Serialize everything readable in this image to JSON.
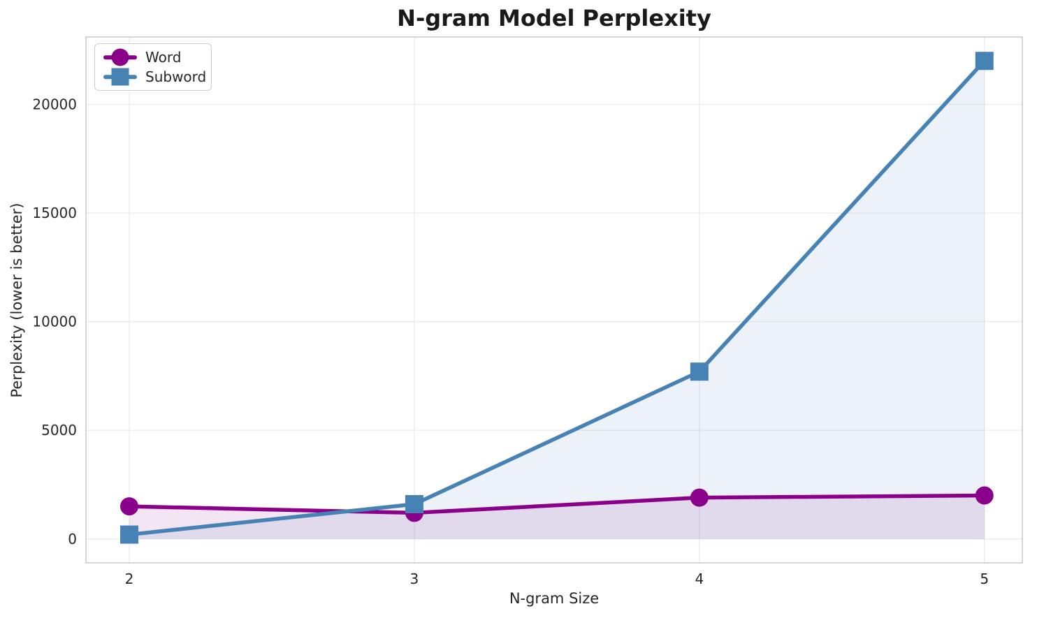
{
  "chart_data": {
    "type": "line",
    "title": "N-gram Model Perplexity",
    "xlabel": "N-gram Size",
    "ylabel": "Perplexity (lower is better)",
    "x": [
      2,
      3,
      4,
      5
    ],
    "series": [
      {
        "name": "Word",
        "marker": "circle",
        "color": "#8B008B",
        "values": [
          1500,
          1200,
          1900,
          2000
        ],
        "fill_to_zero": true
      },
      {
        "name": "Subword",
        "marker": "square",
        "color": "#4682B4",
        "values": [
          200,
          1600,
          7700,
          22000
        ],
        "fill_to_zero": true
      }
    ],
    "xtick_labels": [
      "2",
      "3",
      "4",
      "5"
    ],
    "yticks": [
      0,
      5000,
      10000,
      15000,
      20000
    ],
    "ytick_labels": [
      "0",
      "5000",
      "10000",
      "15000",
      "20000"
    ],
    "xlim": [
      1.848,
      5.133
    ],
    "ylim": [
      -1100,
      23100
    ],
    "grid": true,
    "legend_position": "upper-left",
    "fill_alpha": 0.1,
    "line_width": 5.5,
    "marker_size": 26,
    "colors": {
      "background": "#FFFFFF",
      "grid": "#ECECEC",
      "spine": "#CCCCCC",
      "text": "#262626",
      "title": "#1A1A1A"
    }
  }
}
